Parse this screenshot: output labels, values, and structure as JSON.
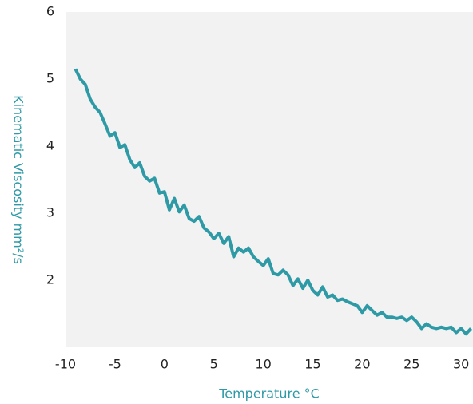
{
  "chart_data": {
    "type": "line",
    "x_label": "Temperature °C",
    "y_label": "Kinematic Viscosity mm²/s",
    "x": [
      -9,
      -8.5,
      -8,
      -7.5,
      -7,
      -6.5,
      -6,
      -5.5,
      -5,
      -4.5,
      -4,
      -3.5,
      -3,
      -2.5,
      -2,
      -1.5,
      -1,
      -0.5,
      0,
      0.5,
      1,
      1.5,
      2,
      2.5,
      3,
      3.5,
      4,
      4.5,
      5,
      5.5,
      6,
      6.5,
      7,
      7.5,
      8,
      8.5,
      9,
      9.5,
      10,
      10.5,
      11,
      11.5,
      12,
      12.5,
      13,
      13.5,
      14,
      14.5,
      15,
      15.5,
      16,
      16.5,
      17,
      17.5,
      18,
      18.5,
      19,
      19.5,
      20,
      20.5,
      21,
      21.5,
      22,
      22.5,
      23,
      23.5,
      24,
      24.5,
      25,
      25.5,
      26,
      26.5,
      27,
      27.5,
      28,
      28.5,
      29,
      29.5,
      30,
      30.5,
      31
    ],
    "series": [
      {
        "color": "#2e9aa6",
        "values": [
          5.15,
          5.0,
          4.92,
          4.7,
          4.58,
          4.5,
          4.33,
          4.15,
          4.2,
          3.98,
          4.02,
          3.8,
          3.68,
          3.75,
          3.55,
          3.48,
          3.52,
          3.3,
          3.32,
          3.05,
          3.22,
          3.02,
          3.12,
          2.92,
          2.88,
          2.95,
          2.78,
          2.72,
          2.62,
          2.7,
          2.55,
          2.65,
          2.35,
          2.48,
          2.42,
          2.48,
          2.35,
          2.28,
          2.22,
          2.32,
          2.1,
          2.08,
          2.15,
          2.08,
          1.92,
          2.02,
          1.88,
          2.0,
          1.85,
          1.78,
          1.9,
          1.75,
          1.78,
          1.7,
          1.72,
          1.68,
          1.65,
          1.62,
          1.52,
          1.62,
          1.55,
          1.48,
          1.52,
          1.45,
          1.45,
          1.43,
          1.45,
          1.4,
          1.45,
          1.38,
          1.28,
          1.35,
          1.3,
          1.28,
          1.3,
          1.28,
          1.3,
          1.22,
          1.28,
          1.2,
          1.28
        ]
      }
    ],
    "xlim": [
      -10,
      31.2
    ],
    "xticks": [
      -10,
      -5,
      0,
      5,
      10,
      15,
      20,
      25,
      30
    ],
    "ylim": [
      1,
      6
    ],
    "yticks": [
      2,
      3,
      4,
      5,
      6
    ]
  }
}
